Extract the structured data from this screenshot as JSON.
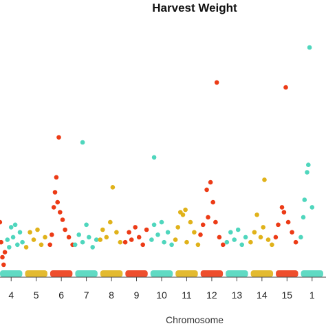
{
  "chart_data": {
    "type": "scatter",
    "title": "Harvest Weight",
    "xlabel": "Chromosome",
    "ylabel": "",
    "grid": false,
    "legend": "none",
    "colors": {
      "teal": "#4fd6bd",
      "gold": "#e0b21a",
      "red": "#ec3b16"
    },
    "chromosome_ticks": [
      "4",
      "5",
      "6",
      "7",
      "8",
      "9",
      "10",
      "11",
      "12",
      "13",
      "14",
      "15",
      "1"
    ],
    "chromosomes": [
      {
        "label": "4",
        "color": "teal",
        "xrange": [
          0.0,
          1.0
        ]
      },
      {
        "label": "5",
        "color": "gold",
        "xrange": [
          1.0,
          2.0
        ]
      },
      {
        "label": "6",
        "color": "red",
        "xrange": [
          2.0,
          3.0
        ]
      },
      {
        "label": "7",
        "color": "teal",
        "xrange": [
          3.0,
          4.0
        ]
      },
      {
        "label": "8",
        "color": "gold",
        "xrange": [
          4.0,
          5.0
        ]
      },
      {
        "label": "9",
        "color": "red",
        "xrange": [
          5.0,
          6.0
        ]
      },
      {
        "label": "10",
        "color": "teal",
        "xrange": [
          6.0,
          7.0
        ]
      },
      {
        "label": "11",
        "color": "gold",
        "xrange": [
          7.0,
          8.0
        ]
      },
      {
        "label": "12",
        "color": "red",
        "xrange": [
          8.0,
          9.0
        ]
      },
      {
        "label": "13",
        "color": "teal",
        "xrange": [
          9.0,
          10.0
        ]
      },
      {
        "label": "14",
        "color": "gold",
        "xrange": [
          10.0,
          11.0
        ]
      },
      {
        "label": "15",
        "color": "red",
        "xrange": [
          11.0,
          12.0
        ]
      },
      {
        "label": "1",
        "color": "teal",
        "xrange": [
          12.0,
          13.0
        ]
      }
    ],
    "ylim": [
      0,
      10
    ],
    "points": [
      [
        0.05,
        2.2,
        "red"
      ],
      [
        0.1,
        1.4,
        "red"
      ],
      [
        0.15,
        0.8,
        "red"
      ],
      [
        0.2,
        0.5,
        "red"
      ],
      [
        0.25,
        1.0,
        "red"
      ],
      [
        0.35,
        1.5,
        "teal"
      ],
      [
        0.42,
        1.2,
        "teal"
      ],
      [
        0.5,
        2.0,
        "teal"
      ],
      [
        0.58,
        1.6,
        "teal"
      ],
      [
        0.66,
        2.1,
        "teal"
      ],
      [
        0.75,
        1.3,
        "teal"
      ],
      [
        0.85,
        1.8,
        "teal"
      ],
      [
        0.95,
        1.4,
        "teal"
      ],
      [
        1.1,
        1.2,
        "gold"
      ],
      [
        1.25,
        1.8,
        "gold"
      ],
      [
        1.4,
        1.5,
        "gold"
      ],
      [
        1.55,
        1.9,
        "gold"
      ],
      [
        1.7,
        1.3,
        "gold"
      ],
      [
        1.85,
        1.6,
        "gold"
      ],
      [
        2.05,
        1.3,
        "red"
      ],
      [
        2.12,
        1.7,
        "red"
      ],
      [
        2.2,
        2.8,
        "red"
      ],
      [
        2.25,
        3.4,
        "red"
      ],
      [
        2.3,
        4.0,
        "red"
      ],
      [
        2.35,
        3.0,
        "red"
      ],
      [
        2.4,
        5.6,
        "red"
      ],
      [
        2.45,
        2.6,
        "red"
      ],
      [
        2.55,
        2.3,
        "red"
      ],
      [
        2.65,
        1.9,
        "red"
      ],
      [
        2.8,
        1.6,
        "red"
      ],
      [
        2.95,
        1.3,
        "red"
      ],
      [
        3.05,
        1.3,
        "teal"
      ],
      [
        3.2,
        1.7,
        "teal"
      ],
      [
        3.35,
        1.4,
        "teal"
      ],
      [
        3.5,
        2.1,
        "teal"
      ],
      [
        3.6,
        1.6,
        "teal"
      ],
      [
        3.75,
        1.2,
        "teal"
      ],
      [
        3.9,
        1.5,
        "teal"
      ],
      [
        4.05,
        1.5,
        "gold"
      ],
      [
        4.15,
        1.9,
        "gold"
      ],
      [
        4.3,
        1.6,
        "gold"
      ],
      [
        4.45,
        2.2,
        "gold"
      ],
      [
        4.55,
        3.6,
        "gold"
      ],
      [
        4.7,
        1.8,
        "gold"
      ],
      [
        4.85,
        1.4,
        "gold"
      ],
      [
        5.05,
        1.4,
        "red"
      ],
      [
        5.2,
        1.8,
        "red"
      ],
      [
        5.3,
        1.5,
        "red"
      ],
      [
        5.45,
        2.0,
        "red"
      ],
      [
        5.6,
        1.6,
        "red"
      ],
      [
        5.75,
        1.3,
        "red"
      ],
      [
        5.9,
        1.9,
        "red"
      ],
      [
        6.1,
        1.5,
        "teal"
      ],
      [
        6.2,
        2.1,
        "teal"
      ],
      [
        6.35,
        1.7,
        "teal"
      ],
      [
        6.5,
        2.2,
        "teal"
      ],
      [
        6.6,
        1.4,
        "teal"
      ],
      [
        6.75,
        1.8,
        "teal"
      ],
      [
        6.9,
        1.3,
        "teal"
      ],
      [
        7.05,
        1.5,
        "gold"
      ],
      [
        7.15,
        2.0,
        "gold"
      ],
      [
        7.25,
        2.6,
        "gold"
      ],
      [
        7.35,
        2.5,
        "gold"
      ],
      [
        7.45,
        2.7,
        "gold"
      ],
      [
        7.5,
        1.4,
        "gold"
      ],
      [
        7.65,
        2.2,
        "gold"
      ],
      [
        7.8,
        1.8,
        "gold"
      ],
      [
        7.95,
        1.3,
        "gold"
      ],
      [
        8.05,
        1.7,
        "red"
      ],
      [
        8.15,
        2.1,
        "red"
      ],
      [
        8.3,
        3.5,
        "red"
      ],
      [
        8.35,
        2.4,
        "red"
      ],
      [
        8.45,
        3.8,
        "red"
      ],
      [
        8.55,
        3.0,
        "red"
      ],
      [
        8.65,
        2.2,
        "red"
      ],
      [
        8.7,
        7.8,
        "red"
      ],
      [
        8.8,
        1.6,
        "red"
      ],
      [
        8.95,
        1.3,
        "red"
      ],
      [
        9.1,
        1.4,
        "teal"
      ],
      [
        9.25,
        1.8,
        "teal"
      ],
      [
        9.4,
        1.5,
        "teal"
      ],
      [
        9.55,
        1.9,
        "teal"
      ],
      [
        9.7,
        1.3,
        "teal"
      ],
      [
        9.85,
        1.6,
        "teal"
      ],
      [
        10.05,
        1.4,
        "gold"
      ],
      [
        10.2,
        1.8,
        "gold"
      ],
      [
        10.3,
        2.5,
        "gold"
      ],
      [
        10.45,
        1.6,
        "gold"
      ],
      [
        10.55,
        2.0,
        "gold"
      ],
      [
        10.6,
        3.9,
        "gold"
      ],
      [
        10.75,
        1.5,
        "gold"
      ],
      [
        10.9,
        1.3,
        "gold"
      ],
      [
        11.05,
        1.6,
        "red"
      ],
      [
        11.15,
        2.1,
        "red"
      ],
      [
        11.3,
        2.8,
        "red"
      ],
      [
        11.38,
        2.6,
        "red"
      ],
      [
        11.45,
        7.6,
        "red"
      ],
      [
        11.55,
        2.2,
        "red"
      ],
      [
        11.7,
        1.8,
        "red"
      ],
      [
        11.85,
        1.4,
        "red"
      ],
      [
        12.05,
        1.6,
        "teal"
      ],
      [
        12.15,
        2.4,
        "teal"
      ],
      [
        12.2,
        3.1,
        "teal"
      ],
      [
        12.3,
        4.2,
        "teal"
      ],
      [
        12.35,
        4.5,
        "teal"
      ],
      [
        12.4,
        9.2,
        "teal"
      ],
      [
        12.5,
        2.8,
        "teal"
      ]
    ],
    "annotated_outliers": [
      {
        "chromosome": "7",
        "x": 3.35,
        "y": 5.4,
        "color": "teal"
      },
      {
        "chromosome": "10",
        "x": 6.2,
        "y": 4.8,
        "color": "teal"
      }
    ]
  }
}
